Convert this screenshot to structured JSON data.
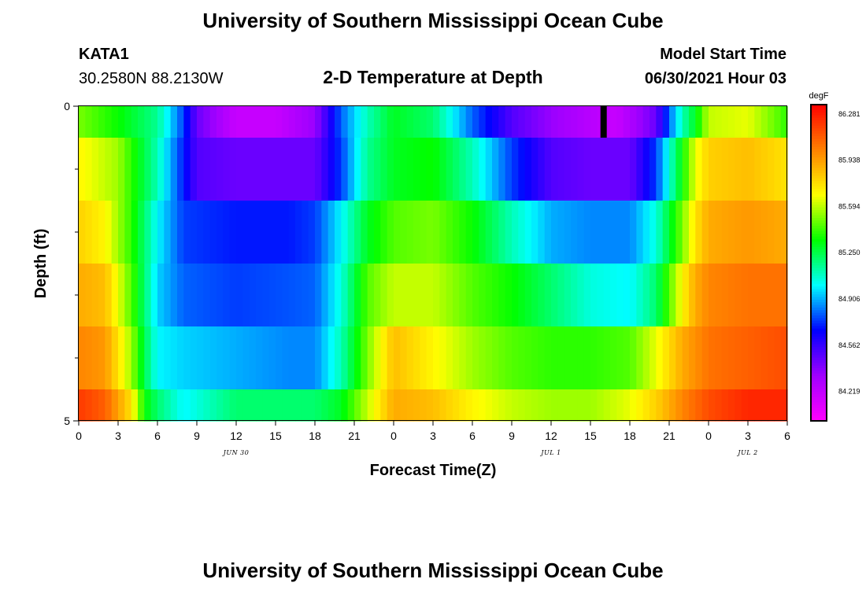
{
  "header": {
    "title": "University of Southern Mississippi Ocean Cube",
    "station": "KATA1",
    "coords": "30.2580N  88.2130W",
    "plot_title": "2-D Temperature at Depth",
    "model_start_label": "Model Start Time",
    "model_start_value": "06/30/2021 Hour 03"
  },
  "footer": {
    "title": "University of Southern Mississippi Ocean Cube"
  },
  "colors": {
    "colormap": [
      "#ff00ff",
      "#a000ff",
      "#0000ff",
      "#00ffff",
      "#00ff00",
      "#ffff00",
      "#ff8000",
      "#ff0000"
    ],
    "marker": "#000000"
  },
  "chart_data": {
    "type": "heatmap",
    "xlabel": "Forecast Time(Z)",
    "ylabel": "Depth (ft)",
    "x_tick_labels": [
      "0",
      "3",
      "6",
      "9",
      "12",
      "15",
      "18",
      "21",
      "0",
      "3",
      "6",
      "9",
      "12",
      "15",
      "18",
      "21",
      "0",
      "3",
      "6"
    ],
    "x_date_labels": [
      {
        "label": "JUN 30",
        "hour": 12
      },
      {
        "label": "JUL 1",
        "hour": 36
      },
      {
        "label": "JUL 2",
        "hour": 51
      }
    ],
    "xlim": [
      0,
      54
    ],
    "y_tick_labels": [
      "0",
      "5"
    ],
    "ylim": [
      0,
      5
    ],
    "colorbar": {
      "unit": "degF",
      "tick_labels": [
        "86.281",
        "85.938",
        "85.594",
        "85.250",
        "84.906",
        "84.562",
        "84.219"
      ],
      "range": [
        84.0,
        86.35
      ]
    },
    "marker_hour": 40,
    "layers": [
      {
        "depth_range": [
          0,
          0.5
        ],
        "knots": [
          [
            0,
            85.5
          ],
          [
            3,
            85.35
          ],
          [
            6,
            85.15
          ],
          [
            8,
            84.75
          ],
          [
            9,
            84.45
          ],
          [
            12,
            84.2
          ],
          [
            15,
            84.2
          ],
          [
            18,
            84.35
          ],
          [
            20,
            84.8
          ],
          [
            22,
            85.1
          ],
          [
            24,
            85.3
          ],
          [
            27,
            85.2
          ],
          [
            30,
            84.8
          ],
          [
            33,
            84.5
          ],
          [
            36,
            84.35
          ],
          [
            39,
            84.25
          ],
          [
            41,
            84.2
          ],
          [
            44,
            84.45
          ],
          [
            45,
            84.8
          ],
          [
            46,
            85.1
          ],
          [
            47,
            85.3
          ],
          [
            48,
            85.6
          ],
          [
            51,
            85.65
          ],
          [
            54,
            85.4
          ]
        ]
      },
      {
        "depth_range": [
          0.5,
          1.5
        ],
        "knots": [
          [
            0,
            85.7
          ],
          [
            3,
            85.55
          ],
          [
            5,
            85.25
          ],
          [
            6,
            85.1
          ],
          [
            7,
            84.9
          ],
          [
            9,
            84.5
          ],
          [
            12,
            84.45
          ],
          [
            15,
            84.45
          ],
          [
            18,
            84.45
          ],
          [
            20,
            84.75
          ],
          [
            22,
            85.15
          ],
          [
            24,
            85.3
          ],
          [
            27,
            85.35
          ],
          [
            30,
            85.1
          ],
          [
            33,
            84.75
          ],
          [
            36,
            84.5
          ],
          [
            39,
            84.45
          ],
          [
            42,
            84.45
          ],
          [
            44,
            84.75
          ],
          [
            46,
            85.35
          ],
          [
            47,
            85.65
          ],
          [
            48,
            85.8
          ],
          [
            51,
            85.85
          ],
          [
            54,
            85.75
          ]
        ]
      },
      {
        "depth_range": [
          1.5,
          2.5
        ],
        "knots": [
          [
            0,
            85.8
          ],
          [
            2,
            85.7
          ],
          [
            4,
            85.4
          ],
          [
            5,
            85.2
          ],
          [
            6,
            85.0
          ],
          [
            8,
            84.75
          ],
          [
            12,
            84.7
          ],
          [
            16,
            84.7
          ],
          [
            18,
            84.75
          ],
          [
            20,
            85.0
          ],
          [
            22,
            85.3
          ],
          [
            24,
            85.45
          ],
          [
            27,
            85.5
          ],
          [
            30,
            85.35
          ],
          [
            33,
            85.1
          ],
          [
            36,
            84.9
          ],
          [
            39,
            84.85
          ],
          [
            42,
            84.85
          ],
          [
            44,
            85.05
          ],
          [
            46,
            85.5
          ],
          [
            47,
            85.75
          ],
          [
            48,
            85.9
          ],
          [
            51,
            85.95
          ],
          [
            54,
            85.9
          ]
        ]
      },
      {
        "depth_range": [
          2.5,
          3.5
        ],
        "knots": [
          [
            0,
            85.9
          ],
          [
            2,
            85.85
          ],
          [
            4,
            85.45
          ],
          [
            5,
            85.2
          ],
          [
            6,
            84.95
          ],
          [
            8,
            84.8
          ],
          [
            12,
            84.75
          ],
          [
            16,
            84.78
          ],
          [
            18,
            84.8
          ],
          [
            20,
            85.05
          ],
          [
            22,
            85.45
          ],
          [
            24,
            85.6
          ],
          [
            27,
            85.6
          ],
          [
            30,
            85.45
          ],
          [
            33,
            85.35
          ],
          [
            36,
            85.2
          ],
          [
            39,
            85.05
          ],
          [
            42,
            85.0
          ],
          [
            44,
            85.2
          ],
          [
            46,
            85.7
          ],
          [
            47,
            85.9
          ],
          [
            48,
            86.0
          ],
          [
            51,
            86.05
          ],
          [
            54,
            86.05
          ]
        ]
      },
      {
        "depth_range": [
          3.5,
          4.5
        ],
        "knots": [
          [
            0,
            86.0
          ],
          [
            2,
            85.95
          ],
          [
            4,
            85.55
          ],
          [
            5,
            85.25
          ],
          [
            6,
            85.0
          ],
          [
            8,
            84.95
          ],
          [
            12,
            84.9
          ],
          [
            16,
            84.85
          ],
          [
            18,
            84.85
          ],
          [
            20,
            85.1
          ],
          [
            22,
            85.5
          ],
          [
            24,
            85.85
          ],
          [
            27,
            85.7
          ],
          [
            30,
            85.55
          ],
          [
            33,
            85.45
          ],
          [
            36,
            85.4
          ],
          [
            39,
            85.4
          ],
          [
            42,
            85.45
          ],
          [
            44,
            85.65
          ],
          [
            46,
            85.9
          ],
          [
            48,
            86.05
          ],
          [
            51,
            86.1
          ],
          [
            54,
            86.15
          ]
        ]
      },
      {
        "depth_range": [
          4.5,
          5
        ],
        "knots": [
          [
            0,
            86.2
          ],
          [
            2,
            86.1
          ],
          [
            4,
            85.75
          ],
          [
            5,
            85.35
          ],
          [
            6,
            85.2
          ],
          [
            8,
            85.0
          ],
          [
            10,
            85.1
          ],
          [
            12,
            85.2
          ],
          [
            16,
            85.2
          ],
          [
            18,
            85.2
          ],
          [
            20,
            85.3
          ],
          [
            22,
            85.6
          ],
          [
            24,
            85.9
          ],
          [
            27,
            85.85
          ],
          [
            30,
            85.7
          ],
          [
            33,
            85.6
          ],
          [
            36,
            85.55
          ],
          [
            39,
            85.55
          ],
          [
            42,
            85.65
          ],
          [
            44,
            85.8
          ],
          [
            46,
            86.0
          ],
          [
            48,
            86.15
          ],
          [
            51,
            86.25
          ],
          [
            54,
            86.25
          ]
        ]
      }
    ]
  }
}
